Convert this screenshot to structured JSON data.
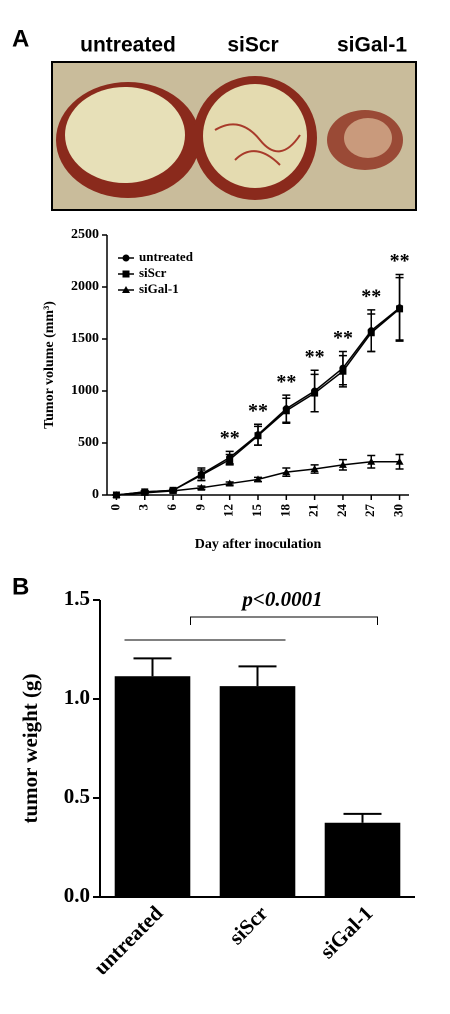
{
  "panels": [
    "A",
    "B"
  ],
  "photo_labels": [
    "untreated",
    "siScr",
    "siGal-1"
  ],
  "chart_data": [
    {
      "type": "line",
      "x_label": "Day after inoculation",
      "y_label": "Tumor volume (mm³)",
      "x": [
        0,
        3,
        6,
        9,
        12,
        15,
        18,
        21,
        24,
        27,
        30
      ],
      "xlim": [
        -1,
        31
      ],
      "xticks": [
        0,
        3,
        6,
        9,
        12,
        15,
        18,
        21,
        24,
        27,
        30
      ],
      "ylim": [
        0,
        2500
      ],
      "yticks": [
        0,
        500,
        1000,
        1500,
        2000,
        2500
      ],
      "legend": "top-left",
      "series": [
        {
          "name": "untreated",
          "color": "#000000",
          "marker": "circle",
          "values": [
            0,
            30,
            45,
            200,
            360,
            580,
            830,
            1000,
            1220,
            1580,
            1800
          ],
          "errors": [
            0,
            10,
            10,
            60,
            60,
            100,
            130,
            200,
            160,
            200,
            320
          ]
        },
        {
          "name": "siScr",
          "color": "#000000",
          "marker": "square",
          "values": [
            0,
            30,
            45,
            190,
            340,
            570,
            810,
            980,
            1190,
            1560,
            1790
          ],
          "errors": [
            0,
            10,
            10,
            50,
            50,
            90,
            120,
            180,
            150,
            180,
            300
          ]
        },
        {
          "name": "siGal-1",
          "color": "#000000",
          "marker": "triangle",
          "values": [
            0,
            20,
            40,
            70,
            110,
            150,
            220,
            250,
            290,
            320,
            320
          ],
          "errors": [
            0,
            5,
            10,
            15,
            15,
            20,
            40,
            40,
            50,
            60,
            70
          ]
        }
      ],
      "annotations": [
        {
          "x": 12,
          "text": "**"
        },
        {
          "x": 15,
          "text": "**"
        },
        {
          "x": 18,
          "text": "**"
        },
        {
          "x": 21,
          "text": "**"
        },
        {
          "x": 24,
          "text": "**"
        },
        {
          "x": 27,
          "text": "**"
        },
        {
          "x": 30,
          "text": "**"
        }
      ]
    },
    {
      "type": "bar",
      "y_label": "tumor weight (g)",
      "categories": [
        "untreated",
        "siScr",
        "siGal-1"
      ],
      "values": [
        1.115,
        1.065,
        0.375
      ],
      "errors": [
        0.09,
        0.1,
        0.045
      ],
      "color": "#000000",
      "ylim": [
        0,
        1.5
      ],
      "yticks": [
        {
          "value": 0,
          "label": "0.0"
        },
        {
          "value": 0.5,
          "label": "0.5"
        },
        {
          "value": 1,
          "label": "1.0"
        },
        {
          "value": 1.5,
          "label": "1.5"
        }
      ],
      "annotation": "p<0.0001"
    }
  ]
}
